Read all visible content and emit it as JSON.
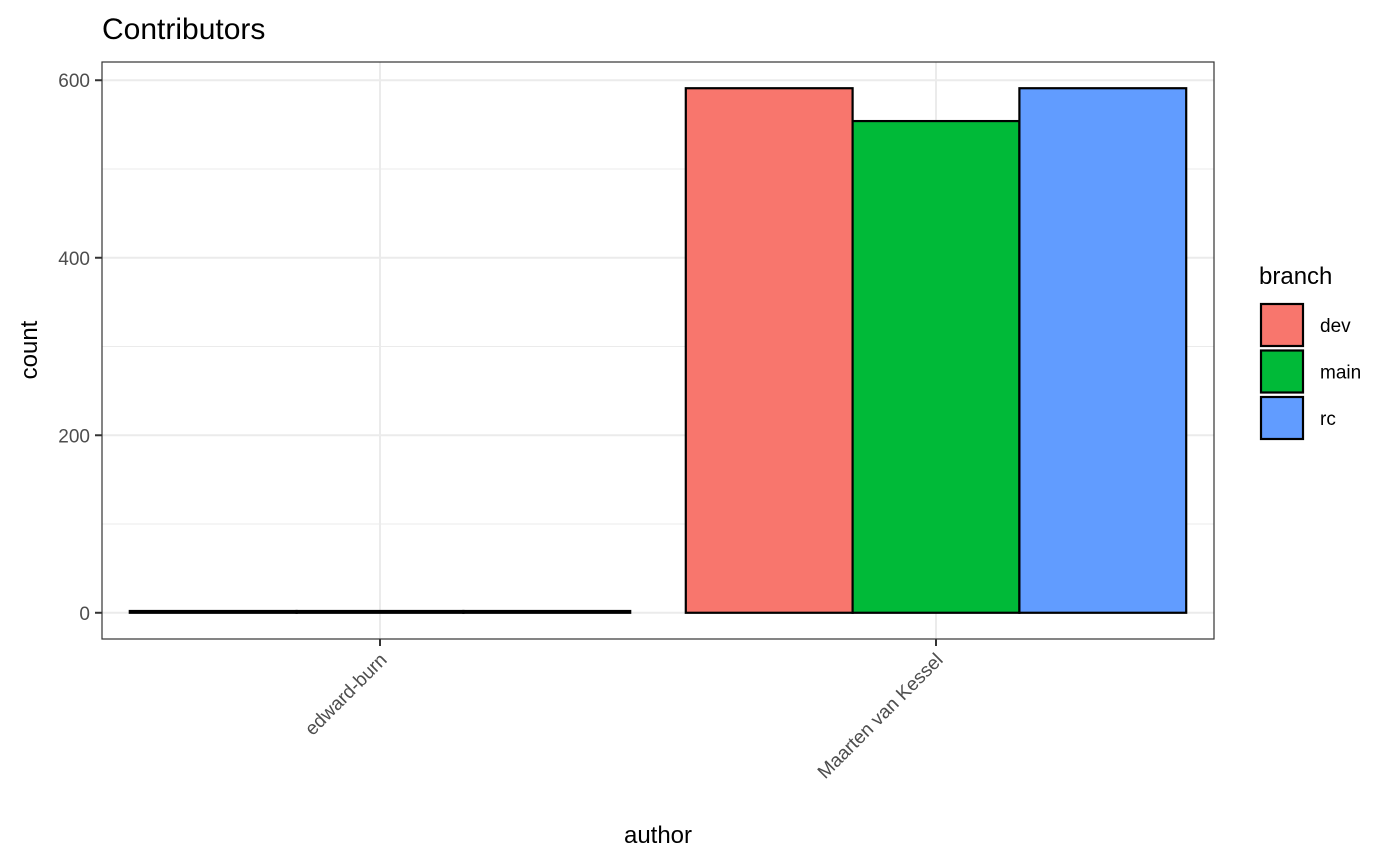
{
  "chart_data": {
    "type": "bar",
    "title": "Contributors",
    "xlabel": "author",
    "ylabel": "count",
    "categories": [
      "edward-burn",
      "Maarten van Kessel"
    ],
    "series": [
      {
        "name": "dev",
        "color": "#F8766D",
        "values": [
          2,
          591
        ]
      },
      {
        "name": "main",
        "color": "#00BA38",
        "values": [
          2,
          554
        ]
      },
      {
        "name": "rc",
        "color": "#619CFF",
        "values": [
          2,
          591
        ]
      }
    ],
    "ylim": [
      -29.55,
      620.55
    ],
    "yticks": [
      0,
      200,
      400,
      600
    ],
    "ytick_labels": [
      "0",
      "200",
      "400",
      "600"
    ],
    "grid": true,
    "legend": {
      "title": "branch",
      "position": "right"
    }
  }
}
